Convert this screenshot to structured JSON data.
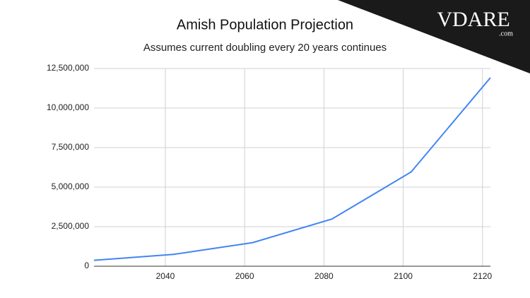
{
  "chart_data": {
    "type": "line",
    "title": "Amish Population Projection",
    "subtitle": "Assumes current doubling every 20 years continues",
    "x": [
      2022,
      2042,
      2062,
      2082,
      2102,
      2122
    ],
    "series": [
      {
        "name": "Amish Population",
        "color": "#4285f4",
        "values": [
          373000,
          746000,
          1490000,
          2980000,
          5960000,
          11920000
        ]
      }
    ],
    "xlim": [
      2022,
      2122
    ],
    "xticks": [
      2040,
      2060,
      2080,
      2100,
      2120
    ],
    "ylim": [
      0,
      12500000
    ],
    "yticks": [
      0,
      {
        "value": 2500000,
        "label": "2,500,000"
      },
      {
        "value": 5000000,
        "label": "5,000,000"
      },
      {
        "value": 7500000,
        "label": "7,500,000"
      },
      {
        "value": 10000000,
        "label": "10,000,000"
      },
      {
        "value": 12500000,
        "label": "12,500,000"
      }
    ],
    "grid": true
  },
  "watermark": {
    "text": "VDARE",
    "suffix": ".com"
  }
}
